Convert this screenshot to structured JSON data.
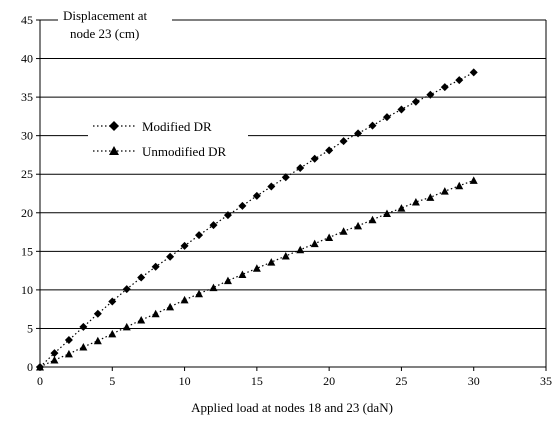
{
  "chart_data": {
    "type": "line",
    "ylabel_line1": "Displacement at",
    "ylabel_line2": "node 23 (cm)",
    "xlabel": "Applied load at nodes 18 and 23 (daN)",
    "xlim": [
      0,
      35
    ],
    "ylim": [
      0,
      45
    ],
    "x_ticks": [
      "0",
      "5",
      "10",
      "15",
      "20",
      "25",
      "30",
      "35"
    ],
    "y_ticks": [
      "0",
      "5",
      "10",
      "15",
      "20",
      "25",
      "30",
      "35",
      "40",
      "45"
    ],
    "grid": "horizontal",
    "legend_placement": "upper-left inside plot",
    "series": [
      {
        "name": "Modified DR",
        "marker": "diamond",
        "line": "dotted",
        "color": "#000000",
        "x": [
          0,
          1,
          2,
          3,
          4,
          5,
          6,
          7,
          8,
          9,
          10,
          11,
          12,
          13,
          14,
          15,
          16,
          17,
          18,
          19,
          20,
          21,
          22,
          23,
          24,
          25,
          26,
          27,
          28,
          29,
          30
        ],
        "y": [
          0,
          1.8,
          3.5,
          5.2,
          6.9,
          8.5,
          10.1,
          11.6,
          13.0,
          14.3,
          15.7,
          17.1,
          18.4,
          19.7,
          20.9,
          22.2,
          23.4,
          24.6,
          25.8,
          27.0,
          28.1,
          29.3,
          30.3,
          31.3,
          32.4,
          33.4,
          34.4,
          35.3,
          36.3,
          37.2,
          38.2
        ]
      },
      {
        "name": "Unmodified DR",
        "marker": "triangle",
        "line": "dotted",
        "color": "#000000",
        "x": [
          0,
          1,
          2,
          3,
          4,
          5,
          6,
          7,
          8,
          9,
          10,
          11,
          12,
          13,
          14,
          15,
          16,
          17,
          18,
          19,
          20,
          21,
          22,
          23,
          24,
          25,
          26,
          27,
          28,
          29,
          30
        ],
        "y": [
          0,
          0.9,
          1.7,
          2.6,
          3.4,
          4.3,
          5.2,
          6.1,
          6.9,
          7.8,
          8.7,
          9.5,
          10.3,
          11.2,
          12.0,
          12.8,
          13.6,
          14.4,
          15.2,
          16.0,
          16.8,
          17.6,
          18.3,
          19.1,
          19.9,
          20.6,
          21.4,
          22.0,
          22.8,
          23.5,
          24.2
        ]
      }
    ]
  }
}
